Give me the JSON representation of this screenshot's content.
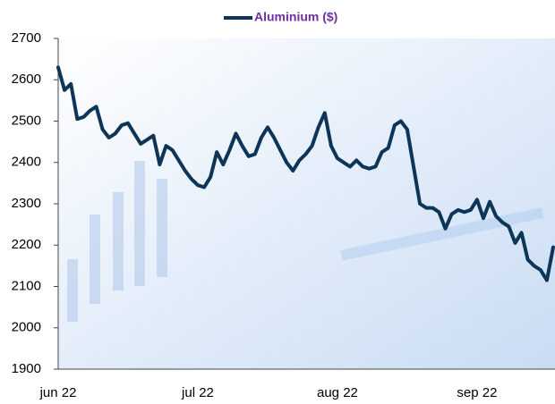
{
  "chart_data": {
    "type": "line",
    "categories": [
      "jun 22",
      null,
      null,
      null,
      null,
      null,
      null,
      null,
      null,
      null,
      null,
      null,
      null,
      null,
      null,
      null,
      null,
      null,
      null,
      null,
      null,
      null,
      "jul 22",
      null,
      null,
      null,
      null,
      null,
      null,
      null,
      null,
      null,
      null,
      null,
      null,
      null,
      null,
      null,
      null,
      null,
      null,
      null,
      null,
      null,
      "aug 22",
      null,
      null,
      null,
      null,
      null,
      null,
      null,
      null,
      null,
      null,
      null,
      null,
      null,
      null,
      null,
      null,
      null,
      null,
      null,
      null,
      null,
      "sep 22",
      null,
      null,
      null,
      null,
      null,
      null,
      null,
      null,
      null,
      null,
      null,
      null
    ],
    "series": [
      {
        "name": "Aluminium ($)",
        "color": "#0d3557",
        "values": [
          2630,
          2575,
          2590,
          2505,
          2510,
          2525,
          2535,
          2480,
          2460,
          2470,
          2490,
          2495,
          2470,
          2445,
          2455,
          2465,
          2395,
          2440,
          2430,
          2405,
          2380,
          2360,
          2345,
          2340,
          2365,
          2425,
          2395,
          2430,
          2470,
          2440,
          2415,
          2420,
          2460,
          2485,
          2460,
          2430,
          2400,
          2380,
          2405,
          2420,
          2440,
          2485,
          2520,
          2440,
          2410,
          2400,
          2390,
          2405,
          2390,
          2385,
          2390,
          2425,
          2435,
          2490,
          2500,
          2480,
          2390,
          2300,
          2290,
          2290,
          2280,
          2240,
          2275,
          2285,
          2280,
          2285,
          2310,
          2265,
          2305,
          2270,
          2255,
          2245,
          2205,
          2230,
          2165,
          2150,
          2140,
          2115,
          2195
        ]
      }
    ],
    "ylim": [
      1900,
      2700
    ],
    "yticks": [
      1900,
      2000,
      2100,
      2200,
      2300,
      2400,
      2500,
      2600,
      2700
    ],
    "legend": "top"
  }
}
